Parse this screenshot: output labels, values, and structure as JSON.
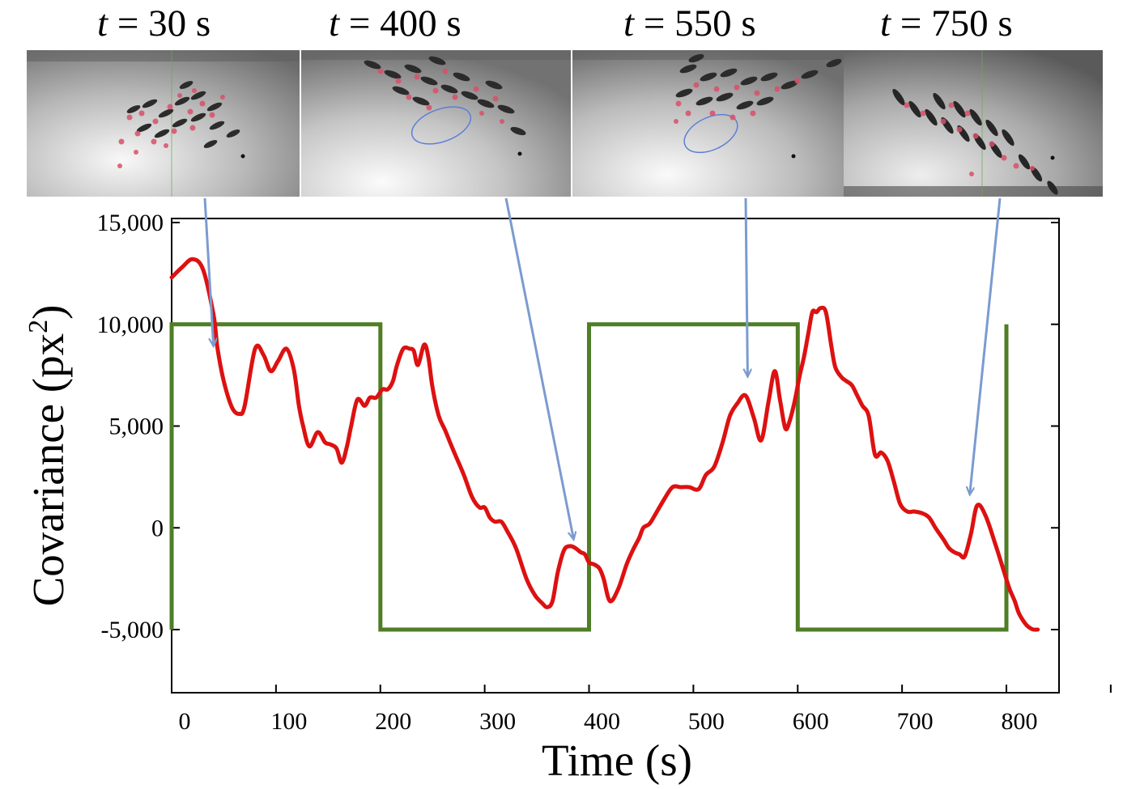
{
  "panels": [
    {
      "label": "t = 30 s",
      "label_var": "t",
      "label_rest": " = 30 s",
      "time": 30
    },
    {
      "label": "t = 400 s",
      "label_var": "t",
      "label_rest": " = 400 s",
      "time": 400
    },
    {
      "label": "t = 550 s",
      "label_var": "t",
      "label_rest": " = 550 s",
      "time": 550
    },
    {
      "label": "t = 750 s",
      "label_var": "t",
      "label_rest": " = 750 s",
      "time": 750
    }
  ],
  "chart_data": {
    "type": "line",
    "xlabel": "Time (s)",
    "ylabel": "Covariance (px²)",
    "ylabel_base": "Covariance (px",
    "ylabel_sup": "2",
    "ylabel_end": ")",
    "xlim": [
      0,
      855
    ],
    "ylim": [
      -8000,
      15000
    ],
    "xticks": [
      0,
      100,
      200,
      300,
      400,
      500,
      600,
      700,
      800
    ],
    "xtick_labels": [
      "0",
      "100",
      "200",
      "300",
      "400",
      "500",
      "600",
      "700",
      "800"
    ],
    "xticks_minor": [
      900
    ],
    "yticks": [
      15000,
      10000,
      5000,
      0,
      -5000
    ],
    "ytick_labels": [
      "15,000",
      "10,000",
      "5,000",
      "0",
      "-5,000"
    ],
    "grid": false,
    "colors": {
      "covariance": "#dd1111",
      "square_wave": "#4f7e25",
      "arrows": "#7b9bd0"
    },
    "series": [
      {
        "style": "smooth",
        "x": [
          0,
          10,
          20,
          30,
          40,
          44,
          50,
          58,
          65,
          70,
          80,
          88,
          95,
          102,
          110,
          117,
          122,
          126,
          132,
          140,
          147,
          152,
          158,
          163,
          168,
          172,
          178,
          185,
          190,
          196,
          202,
          207,
          212,
          216,
          222,
          228,
          232,
          236,
          242,
          246,
          250,
          256,
          262,
          270,
          280,
          288,
          295,
          300,
          305,
          310,
          316,
          322,
          330,
          340,
          348,
          355,
          360,
          365,
          370,
          376,
          382,
          387,
          392,
          396,
          400,
          405,
          410,
          414,
          420,
          428,
          436,
          442,
          448,
          452,
          458,
          464,
          472,
          480,
          488,
          496,
          505,
          512,
          520,
          528,
          535,
          542,
          550,
          558,
          565,
          572,
          578,
          583,
          588,
          592,
          597,
          602,
          606,
          610,
          614,
          618,
          622,
          627,
          632,
          636,
          642,
          647,
          652,
          657,
          662,
          668,
          674,
          680,
          686,
          692,
          698,
          705,
          712,
          720,
          726,
          732,
          740,
          745,
          750,
          755,
          760,
          766,
          772,
          780,
          790,
          798,
          803,
          808,
          812,
          818,
          822,
          826,
          830
        ],
        "y": [
          12300,
          12800,
          13200,
          12700,
          10500,
          8800,
          7200,
          5900,
          5600,
          6000,
          8800,
          8500,
          7700,
          8200,
          8800,
          7800,
          6000,
          5000,
          4000,
          4700,
          4200,
          4100,
          3900,
          3200,
          4000,
          5000,
          6300,
          6000,
          6400,
          6400,
          6800,
          6800,
          7200,
          8000,
          8800,
          8800,
          8700,
          8000,
          9000,
          8400,
          6900,
          5500,
          4800,
          3800,
          2600,
          1500,
          1000,
          1000,
          500,
          300,
          300,
          -200,
          -1000,
          -2500,
          -3300,
          -3700,
          -3900,
          -3600,
          -2200,
          -1100,
          -900,
          -1000,
          -1200,
          -1300,
          -1700,
          -1800,
          -2000,
          -2500,
          -3600,
          -3000,
          -1800,
          -1100,
          -500,
          0,
          200,
          700,
          1400,
          2000,
          2000,
          2000,
          1900,
          2600,
          3000,
          4200,
          5500,
          6100,
          6500,
          5400,
          4300,
          6200,
          7700,
          6300,
          4900,
          5200,
          6200,
          7500,
          8400,
          9500,
          10600,
          10600,
          10800,
          10600,
          9000,
          7900,
          7400,
          7200,
          7000,
          6500,
          6000,
          5500,
          3600,
          3700,
          3300,
          2300,
          1200,
          800,
          800,
          700,
          500,
          0,
          -600,
          -1000,
          -1200,
          -1300,
          -1400,
          -300,
          1100,
          600,
          -900,
          -2200,
          -3000,
          -3600,
          -4200,
          -4700,
          -4900,
          -5000,
          -5000
        ]
      },
      {
        "style": "step",
        "x": [
          0,
          0,
          200,
          200,
          400,
          400,
          600,
          600,
          800,
          800
        ],
        "y": [
          -5000,
          10000,
          10000,
          -5000,
          -5000,
          10000,
          10000,
          -5000,
          -5000,
          10000
        ]
      }
    ],
    "annotations": [
      {
        "from_panel": 0,
        "to_x": 40,
        "to_y": 9000
      },
      {
        "from_panel": 1,
        "to_x": 385,
        "to_y": -500
      },
      {
        "from_panel": 2,
        "to_x": 552,
        "to_y": 7500
      },
      {
        "from_panel": 3,
        "to_x": 765,
        "to_y": 1700
      }
    ]
  }
}
